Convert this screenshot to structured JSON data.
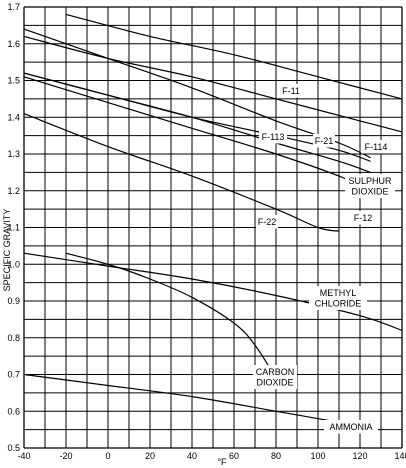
{
  "chart_data": {
    "type": "line",
    "xlabel": "°F",
    "ylabel": "SPECIFIC GRAVITY",
    "xlim": [
      -40,
      140
    ],
    "ylim": [
      0.5,
      1.7
    ],
    "x_ticks": [
      "-40",
      "-20",
      "0",
      "20",
      "40",
      "60",
      "80",
      "100",
      "120",
      "140"
    ],
    "y_ticks": [
      "0.5",
      "0.6",
      "0.7",
      "0.8",
      "0.9",
      "1.0",
      "1.1",
      "1.2",
      "1.3",
      "1.4",
      "1.5",
      "1.6",
      "1.7"
    ],
    "grid": true,
    "series": [
      {
        "name": "F-113",
        "label": [
          "F-113"
        ],
        "x": [
          -20,
          20,
          60,
          100,
          140
        ],
        "y": [
          1.68,
          1.62,
          1.57,
          1.51,
          1.45
        ]
      },
      {
        "name": "F-11",
        "label": [
          "F-11"
        ],
        "x": [
          -40,
          0,
          40,
          80,
          120,
          140
        ],
        "y": [
          1.62,
          1.56,
          1.51,
          1.45,
          1.39,
          1.36
        ]
      },
      {
        "name": "F-21",
        "label": [
          "F-21"
        ],
        "x": [
          -40,
          0,
          40,
          80,
          110,
          125
        ],
        "y": [
          1.52,
          1.46,
          1.4,
          1.35,
          1.31,
          1.28
        ]
      },
      {
        "name": "F-114",
        "label": [
          "F-114"
        ],
        "x": [
          -40,
          0,
          40,
          80,
          110,
          125
        ],
        "y": [
          1.64,
          1.56,
          1.48,
          1.39,
          1.33,
          1.29
        ]
      },
      {
        "name": "SULPHUR DIOXIDE",
        "label": [
          "SULPHUR",
          "DIOXIDE"
        ],
        "x": [
          -40,
          0,
          40,
          80,
          110,
          125
        ],
        "y": [
          1.52,
          1.46,
          1.4,
          1.33,
          1.28,
          1.25
        ]
      },
      {
        "name": "F-12",
        "label": [
          "F-12"
        ],
        "x": [
          -40,
          0,
          40,
          80,
          110,
          125
        ],
        "y": [
          1.51,
          1.44,
          1.37,
          1.3,
          1.24,
          1.2
        ]
      },
      {
        "name": "F-22",
        "label": [
          "F-22"
        ],
        "x": [
          -40,
          0,
          40,
          80,
          100,
          110
        ],
        "y": [
          1.41,
          1.32,
          1.24,
          1.15,
          1.1,
          1.09
        ]
      },
      {
        "name": "METHYL CHLORIDE",
        "label": [
          "METHYL",
          "CHLORIDE"
        ],
        "x": [
          -40,
          0,
          40,
          80,
          120,
          140
        ],
        "y": [
          1.03,
          0.995,
          0.96,
          0.915,
          0.86,
          0.82
        ]
      },
      {
        "name": "CARBON DIOXIDE",
        "label": [
          "CARBON",
          "DIOXIDE"
        ],
        "x": [
          -20,
          0,
          20,
          40,
          60,
          70,
          80
        ],
        "y": [
          1.03,
          1.0,
          0.96,
          0.91,
          0.84,
          0.78,
          0.69
        ]
      },
      {
        "name": "AMMONIA",
        "label": [
          "AMMONIA"
        ],
        "x": [
          -40,
          0,
          40,
          80,
          110
        ],
        "y": [
          0.7,
          0.67,
          0.64,
          0.6,
          0.57
        ]
      }
    ]
  }
}
